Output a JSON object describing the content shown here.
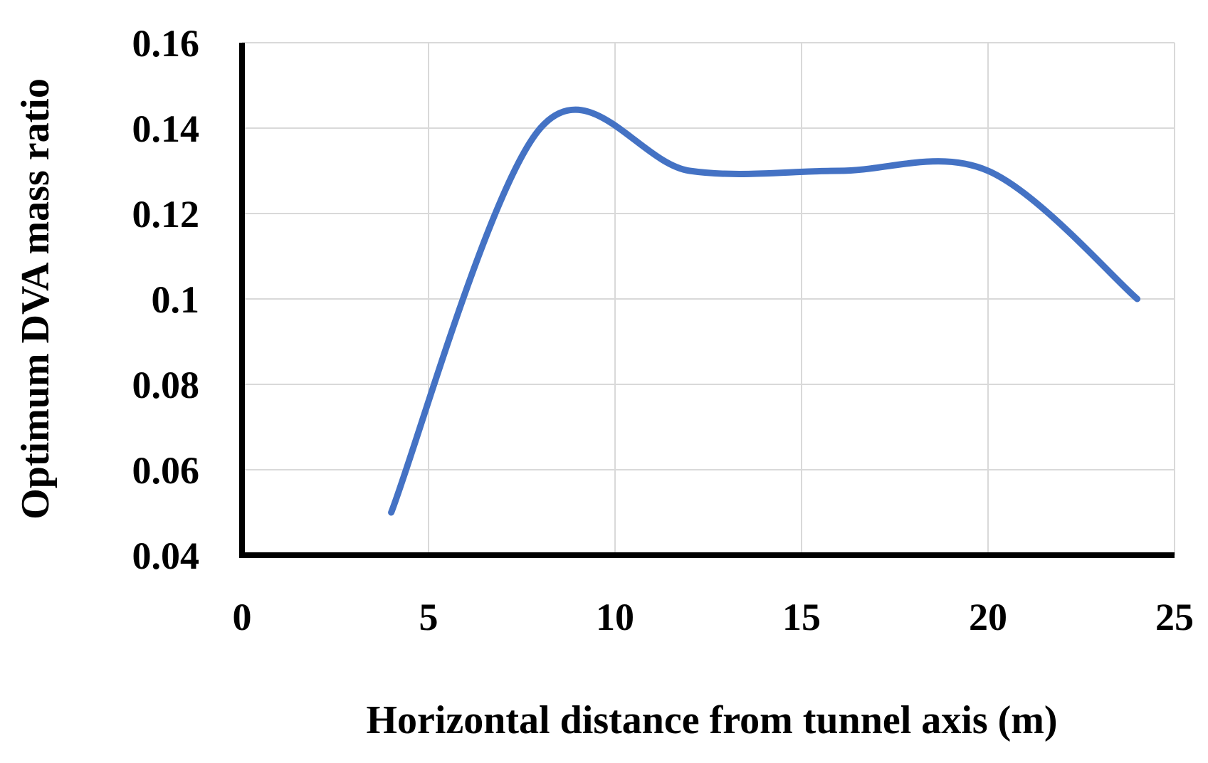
{
  "chart_data": {
    "type": "line",
    "title": "",
    "xlabel": "Horizontal distance from tunnel axis (m)",
    "ylabel": "Optimum DVA mass ratio",
    "xlim": [
      0,
      25
    ],
    "ylim": [
      0.04,
      0.16
    ],
    "x_ticks": [
      "0",
      "5",
      "10",
      "15",
      "20",
      "25"
    ],
    "y_ticks": [
      "0.04",
      "0.06",
      "0.08",
      "0.1",
      "0.12",
      "0.14",
      "0.16"
    ],
    "x_tick_values": [
      0,
      5,
      10,
      15,
      20,
      25
    ],
    "y_tick_values": [
      0.04,
      0.06,
      0.08,
      0.1,
      0.12,
      0.14,
      0.16
    ],
    "grid": true,
    "legend": "none",
    "series": [
      {
        "x": [
          4,
          8,
          12,
          16,
          20,
          24
        ],
        "values": [
          0.05,
          0.14,
          0.13,
          0.13,
          0.13,
          0.1
        ],
        "color": "#4472c4",
        "smooth": true
      }
    ]
  }
}
